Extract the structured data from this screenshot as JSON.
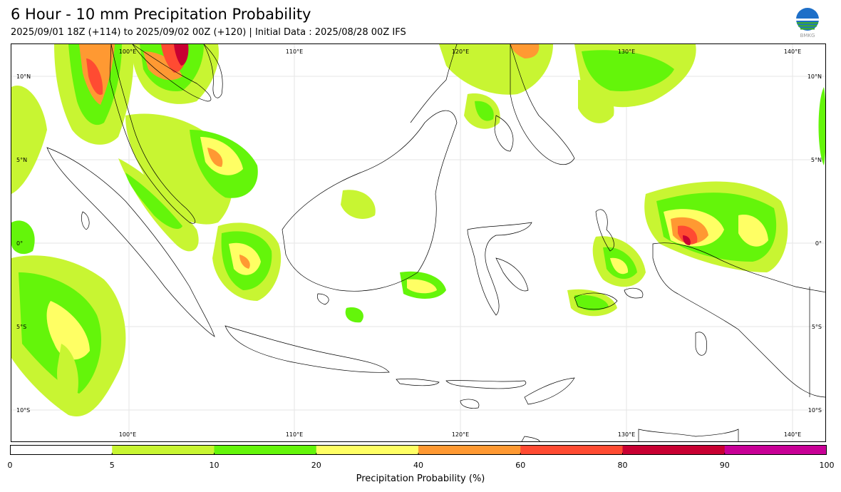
{
  "header": {
    "title": "6 Hour - 10 mm Precipitation Probability",
    "subtitle": "2025/09/01 18Z (+114) to 2025/09/02 00Z (+120) | Initial Data : 2025/08/28 00Z IFS"
  },
  "logo": {
    "icon": "bmkg-globe-logo",
    "text": "BMKG"
  },
  "map": {
    "lon_labels": [
      "100°E",
      "110°E",
      "120°E",
      "130°E",
      "140°E"
    ],
    "lat_labels": [
      "10°N",
      "5°N",
      "0°",
      "5°S",
      "10°S"
    ],
    "gridlines": true
  },
  "colorbar": {
    "label": "Precipitation Probability (%)",
    "ticks": [
      "0",
      "5",
      "10",
      "20",
      "40",
      "60",
      "80",
      "90",
      "100"
    ],
    "colors": [
      "#ffffff",
      "#c8f532",
      "#64f50a",
      "#ffff64",
      "#ff9932",
      "#ff4b32",
      "#c80032",
      "#c80096"
    ]
  }
}
